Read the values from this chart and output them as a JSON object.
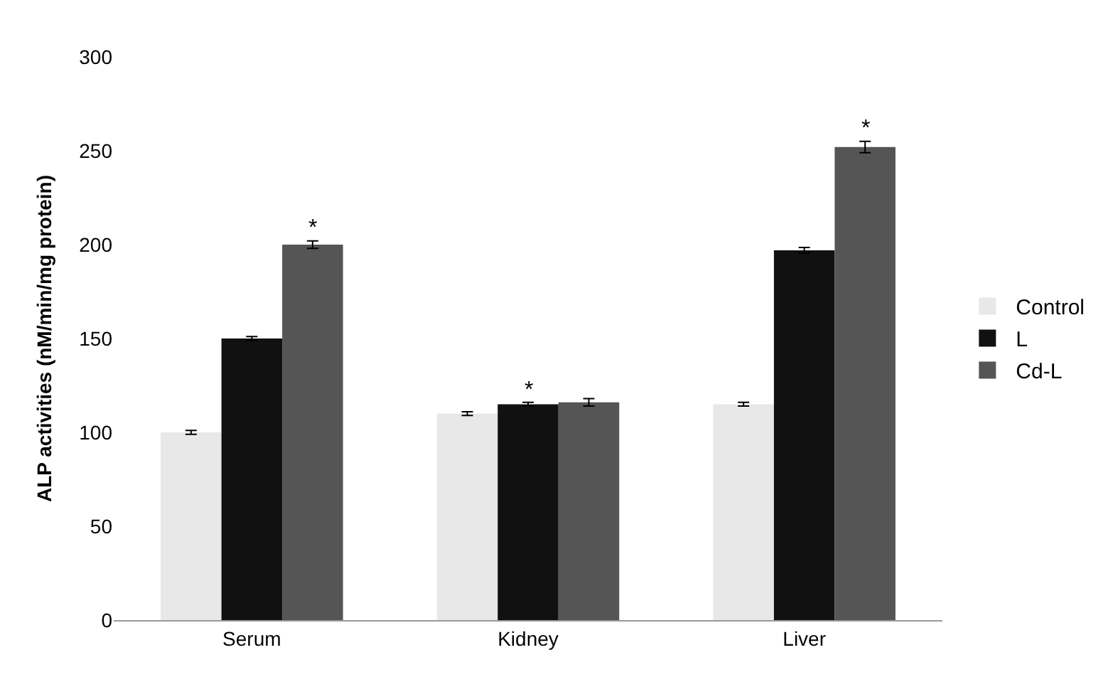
{
  "chart_data": {
    "type": "bar",
    "ylabel": "ALP activities (nM/min/mg protein)",
    "categories": [
      "Serum",
      "Kidney",
      "Liver"
    ],
    "series": [
      {
        "name": "Control",
        "color": "#e8e8e8",
        "values": [
          100,
          110,
          115
        ],
        "errors": [
          1,
          1,
          1
        ]
      },
      {
        "name": "L",
        "color": "#111111",
        "values": [
          150,
          115,
          197
        ],
        "errors": [
          1,
          1,
          1.5
        ]
      },
      {
        "name": "Cd-L",
        "color": "#555555",
        "values": [
          200,
          116,
          252
        ],
        "errors": [
          2,
          2,
          3
        ]
      }
    ],
    "ylim": [
      0,
      300
    ],
    "yticks": [
      0,
      50,
      100,
      150,
      200,
      250,
      300
    ],
    "legend": "right",
    "annotations": [
      "*",
      "*",
      "*"
    ]
  }
}
